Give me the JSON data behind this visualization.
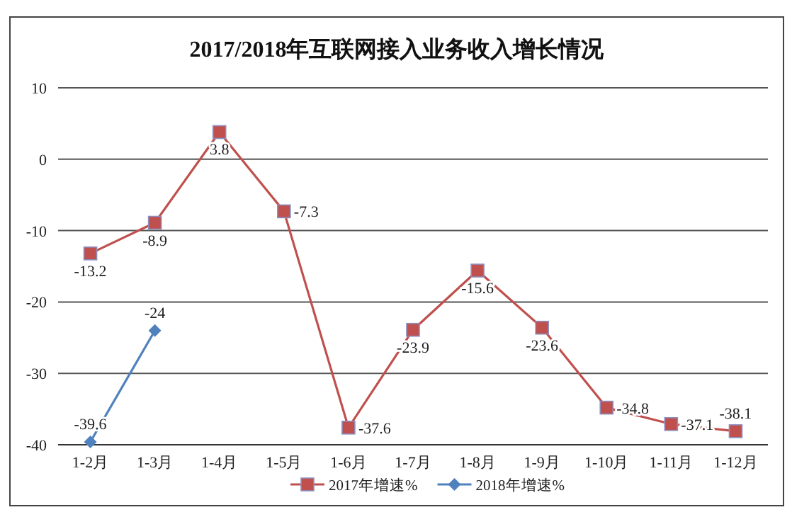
{
  "chart_data": {
    "type": "line",
    "title": "2017/2018年互联网接入业务收入增长情况",
    "categories": [
      "1-2月",
      "1-3月",
      "1-4月",
      "1-5月",
      "1-6月",
      "1-7月",
      "1-8月",
      "1-9月",
      "1-10月",
      "1-11月",
      "1-12月"
    ],
    "series": [
      {
        "name": "2017年增速%",
        "color": "#c0504d",
        "marker": "square",
        "values": [
          -13.2,
          -8.9,
          3.8,
          -7.3,
          -37.6,
          -23.9,
          -15.6,
          -23.6,
          -34.8,
          -37.1,
          -38.1
        ]
      },
      {
        "name": "2018年增速%",
        "color": "#4f81bd",
        "marker": "diamond",
        "values": [
          -39.6,
          -24,
          null,
          null,
          null,
          null,
          null,
          null,
          null,
          null,
          null
        ]
      }
    ],
    "ylim": [
      -40,
      10
    ],
    "yticks": [
      -40,
      -30,
      -20,
      -10,
      0,
      10
    ],
    "grid": "y",
    "legend": "bottom",
    "data_labels": true
  }
}
